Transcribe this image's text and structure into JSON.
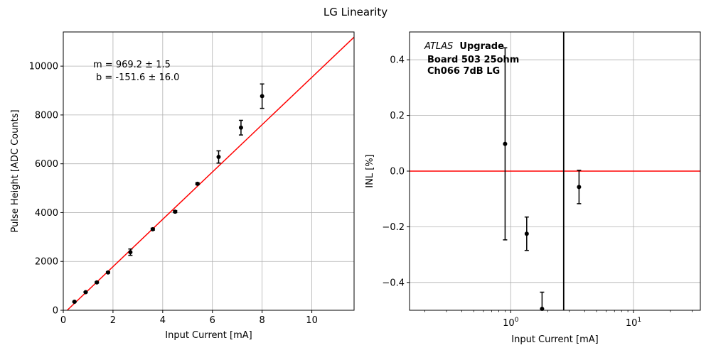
{
  "figure_title": "LG Linearity",
  "chart_data": [
    {
      "type": "scatter",
      "xlabel": "Input Current [mA]",
      "ylabel": "Pulse Height [ADC Counts]",
      "xlim": [
        0,
        11.7
      ],
      "ylim": [
        0,
        11400
      ],
      "xticks": [
        0,
        2,
        4,
        6,
        8,
        10
      ],
      "yticks": [
        0,
        2000,
        4000,
        6000,
        8000,
        10000
      ],
      "grid": true,
      "annotations": [
        "m = 969.2 ± 1.5",
        "b = -151.6 ± 16.0"
      ],
      "fit_line": {
        "slope": 969.2,
        "intercept": -151.6,
        "color": "#ff0000"
      },
      "series": [
        {
          "color": "#000000",
          "points": [
            {
              "x": 0.45,
              "y": 350,
              "err": 20
            },
            {
              "x": 0.9,
              "y": 740,
              "err": 20
            },
            {
              "x": 1.35,
              "y": 1140,
              "err": 25
            },
            {
              "x": 1.8,
              "y": 1550,
              "err": 30
            },
            {
              "x": 2.7,
              "y": 2380,
              "err": 130
            },
            {
              "x": 3.6,
              "y": 3320,
              "err": 40
            },
            {
              "x": 4.5,
              "y": 4040,
              "err": 40
            },
            {
              "x": 5.4,
              "y": 5180,
              "err": 40
            },
            {
              "x": 6.25,
              "y": 6280,
              "err": 250
            },
            {
              "x": 7.15,
              "y": 7480,
              "err": 300
            },
            {
              "x": 8.0,
              "y": 8770,
              "err": 500
            }
          ]
        }
      ]
    },
    {
      "type": "scatter",
      "xlabel": "Input Current [mA]",
      "ylabel": "INL [%]",
      "xscale": "log",
      "xlim": [
        0.15,
        35
      ],
      "ylim": [
        -0.5,
        0.5
      ],
      "xticks": [
        {
          "value": 1,
          "base": "10",
          "exp": "0"
        },
        {
          "value": 10,
          "base": "10",
          "exp": "1"
        }
      ],
      "yticks": [
        -0.4,
        -0.2,
        0.0,
        0.2,
        0.4
      ],
      "ytick_labels": [
        "−0.4",
        "−0.2",
        "0.0",
        "0.2",
        "0.4"
      ],
      "grid": true,
      "zero_line_color": "#ff0000",
      "vertical_line_x": 2.7,
      "text_block": {
        "experiment": "ATLAS",
        "experiment_suffix": "Upgrade",
        "line2": "Board 503 25ohm",
        "line3": "Ch066 7dB LG"
      },
      "series": [
        {
          "color": "#000000",
          "points": [
            {
              "x": 0.9,
              "y": 0.098,
              "err_low": 0.345,
              "err_high": 0.345
            },
            {
              "x": 1.35,
              "y": -0.225,
              "err_low": 0.06,
              "err_high": 0.06
            },
            {
              "x": 1.8,
              "y": -0.495,
              "err_low": 0.06,
              "err_high": 0.06
            },
            {
              "x": 3.6,
              "y": -0.057,
              "err_low": 0.06,
              "err_high": 0.06
            }
          ]
        }
      ]
    }
  ]
}
